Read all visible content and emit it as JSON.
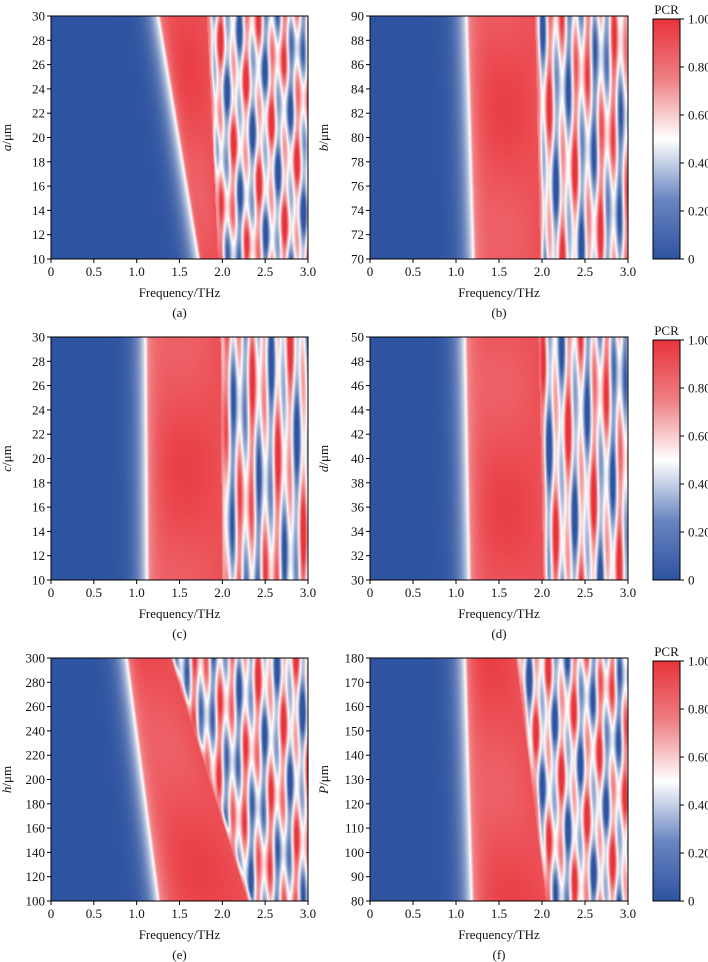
{
  "colorbar": {
    "title": "PCR",
    "ticks": [
      "1.00",
      "0.80",
      "0.60",
      "0.40",
      "0.20",
      "0"
    ],
    "colors": {
      "low": "#2e53a0",
      "mid": "#ffffff",
      "high": "#e8333a"
    }
  },
  "chart_data": [
    {
      "type": "heatmap",
      "panel": "(a)",
      "title": "",
      "xlabel": "Frequency/THz",
      "ylabel": "a/μm",
      "ylabel_var": "a",
      "ylabel_unit": "/μm",
      "xlim": [
        0,
        3.0
      ],
      "ylim": [
        10,
        30
      ],
      "xticks": [
        "0",
        "0.5",
        "1.0",
        "1.5",
        "2.0",
        "2.5",
        "3.0"
      ],
      "yticks": [
        "10",
        "12",
        "14",
        "16",
        "18",
        "20",
        "22",
        "24",
        "26",
        "28",
        "30"
      ],
      "zlim": [
        0,
        1
      ],
      "band_start": [
        1.72,
        1.25
      ],
      "band_end": [
        1.95,
        1.82
      ],
      "chaos_low": 0.85
    },
    {
      "type": "heatmap",
      "panel": "(b)",
      "title": "",
      "xlabel": "Frequency/THz",
      "ylabel": "b/μm",
      "ylabel_var": "b",
      "ylabel_unit": "/μm",
      "xlim": [
        0,
        3.0
      ],
      "ylim": [
        70,
        90
      ],
      "xticks": [
        "0",
        "0.5",
        "1.0",
        "1.5",
        "2.0",
        "2.5",
        "3.0"
      ],
      "yticks": [
        "70",
        "72",
        "74",
        "76",
        "78",
        "80",
        "82",
        "84",
        "86",
        "88",
        "90"
      ],
      "zlim": [
        0,
        1
      ],
      "band_start": [
        1.2,
        1.12
      ],
      "band_end": [
        1.98,
        1.92
      ],
      "chaos_low": 0.55
    },
    {
      "type": "heatmap",
      "panel": "(c)",
      "title": "",
      "xlabel": "Frequency/THz",
      "ylabel": "c/μm",
      "ylabel_var": "c",
      "ylabel_unit": "/μm",
      "xlim": [
        0,
        3.0
      ],
      "ylim": [
        10,
        30
      ],
      "xticks": [
        "0",
        "0.5",
        "1.0",
        "1.5",
        "2.0",
        "2.5",
        "3.0"
      ],
      "yticks": [
        "10",
        "12",
        "14",
        "16",
        "18",
        "20",
        "22",
        "24",
        "26",
        "28",
        "30"
      ],
      "zlim": [
        0,
        1
      ],
      "band_start": [
        1.12,
        1.1
      ],
      "band_end": [
        2.0,
        1.98
      ],
      "chaos_low": 0.45
    },
    {
      "type": "heatmap",
      "panel": "(d)",
      "title": "",
      "xlabel": "Frequency/THz",
      "ylabel": "d/μm",
      "ylabel_var": "d",
      "ylabel_unit": "/μm",
      "xlim": [
        0,
        3.0
      ],
      "ylim": [
        30,
        50
      ],
      "xticks": [
        "0",
        "0.5",
        "1.0",
        "1.5",
        "2.0",
        "2.5",
        "3.0"
      ],
      "yticks": [
        "30",
        "32",
        "34",
        "36",
        "38",
        "40",
        "42",
        "44",
        "46",
        "48",
        "50"
      ],
      "zlim": [
        0,
        1
      ],
      "band_start": [
        1.15,
        1.1
      ],
      "band_end": [
        2.02,
        1.96
      ],
      "chaos_low": 0.5
    },
    {
      "type": "heatmap",
      "panel": "(e)",
      "title": "",
      "xlabel": "Frequency/THz",
      "ylabel": "h/μm",
      "ylabel_var": "h",
      "ylabel_unit": "/μm",
      "xlim": [
        0,
        3.0
      ],
      "ylim": [
        100,
        300
      ],
      "xticks": [
        "0",
        "0.5",
        "1.0",
        "1.5",
        "2.0",
        "2.5",
        "3.0"
      ],
      "yticks": [
        "100",
        "120",
        "140",
        "160",
        "180",
        "200",
        "220",
        "240",
        "260",
        "280",
        "300"
      ],
      "zlim": [
        0,
        1
      ],
      "band_start": [
        1.25,
        0.88
      ],
      "band_end": [
        2.3,
        1.4
      ],
      "chaos_low": 0.75
    },
    {
      "type": "heatmap",
      "panel": "(f)",
      "title": "",
      "xlabel": "Frequency/THz",
      "ylabel": "P/μm",
      "ylabel_var": "P",
      "ylabel_unit": "/μm",
      "xlim": [
        0,
        3.0
      ],
      "ylim": [
        80,
        180
      ],
      "xticks": [
        "0",
        "0.5",
        "1.0",
        "1.5",
        "2.0",
        "2.5",
        "3.0"
      ],
      "yticks": [
        "80",
        "90",
        "100",
        "110",
        "120",
        "130",
        "140",
        "150",
        "160",
        "170",
        "180"
      ],
      "zlim": [
        0,
        1
      ],
      "band_start": [
        1.18,
        1.1
      ],
      "band_end": [
        2.05,
        1.7
      ],
      "chaos_low": 0.8
    }
  ]
}
